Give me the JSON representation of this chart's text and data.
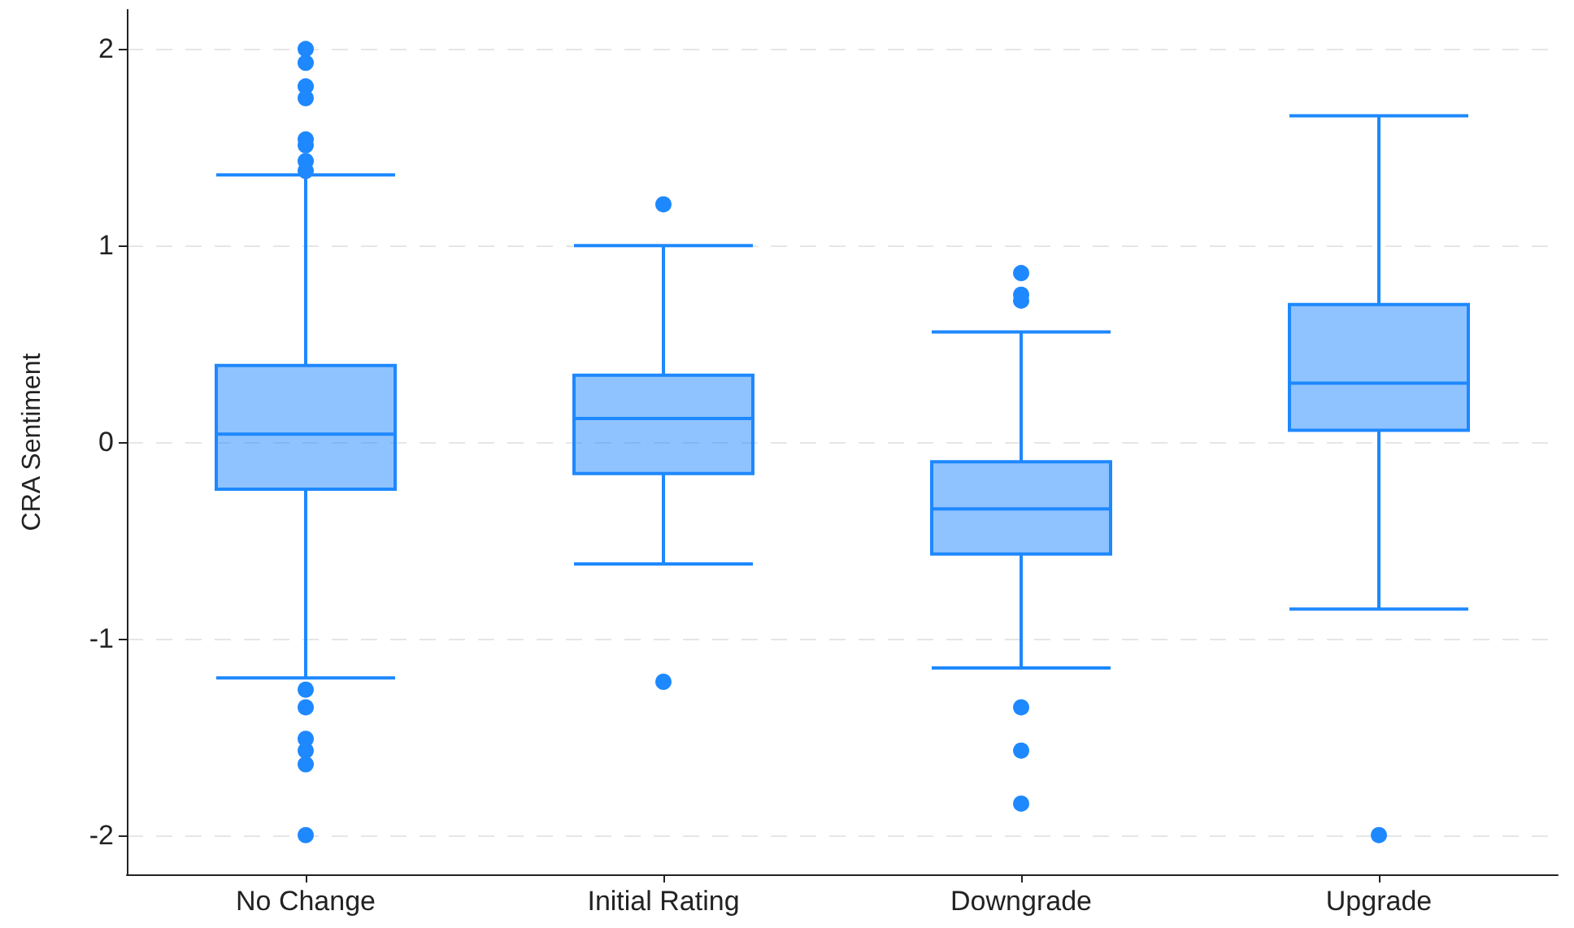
{
  "chart_data": {
    "type": "box",
    "ylabel": "CRA Sentiment",
    "categories": [
      "No Change",
      "Initial Rating",
      "Downgrade",
      "Upgrade"
    ],
    "color": "#1e88ff",
    "boxes": [
      {
        "low": -1.2,
        "q1": -0.24,
        "median": 0.04,
        "q3": 0.39,
        "high": 1.36,
        "outliers": [
          2.0,
          1.93,
          1.81,
          1.75,
          1.54,
          1.51,
          1.43,
          1.38,
          -1.26,
          -1.35,
          -1.51,
          -1.57,
          -1.64,
          -2.0
        ]
      },
      {
        "low": -0.62,
        "q1": -0.16,
        "median": 0.12,
        "q3": 0.34,
        "high": 1.0,
        "outliers": [
          1.21,
          -1.22
        ]
      },
      {
        "low": -1.15,
        "q1": -0.57,
        "median": -0.34,
        "q3": -0.1,
        "high": 0.56,
        "outliers": [
          0.86,
          0.75,
          0.72,
          -1.35,
          -1.57,
          -1.84
        ]
      },
      {
        "low": -0.85,
        "q1": 0.06,
        "median": 0.3,
        "q3": 0.7,
        "high": 1.66,
        "outliers": [
          -2.0
        ]
      }
    ],
    "ylim": [
      -2.2,
      2.2
    ],
    "yticks": [
      -2,
      -1,
      0,
      1,
      2
    ],
    "grid": "y"
  }
}
